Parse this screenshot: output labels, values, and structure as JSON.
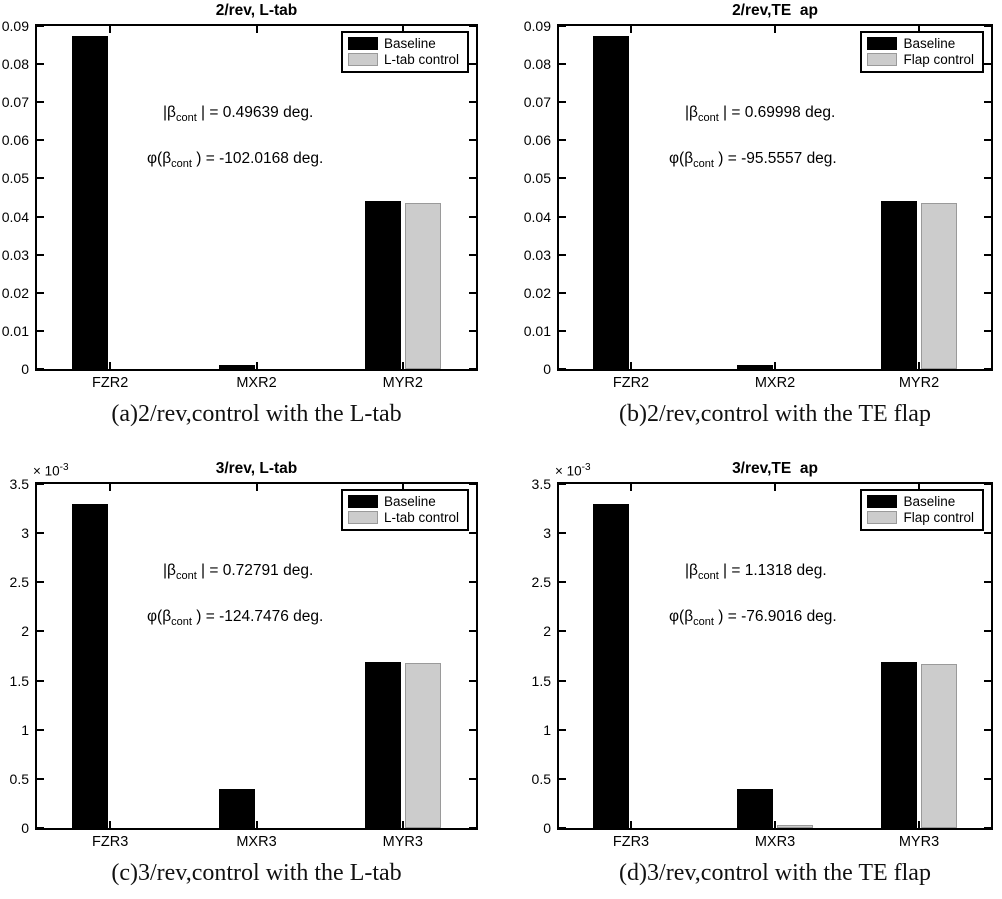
{
  "page": {
    "background": "#ffffff"
  },
  "colors": {
    "baseline": "#000000",
    "control_fill": "#cccccc",
    "control_edge": "#9a9a9a",
    "axis": "#000000"
  },
  "chart_data": [
    {
      "type": "bar",
      "title": "2/rev, L-tab",
      "caption": "(a)2/rev,control with the L-tab",
      "categories": [
        "FZR2",
        "MXR2",
        "MYR2"
      ],
      "series": [
        {
          "name": "Baseline",
          "color": "#000000",
          "values": [
            0.0875,
            0.001,
            0.044
          ]
        },
        {
          "name": "L-tab control",
          "color": "#cccccc",
          "values": [
            0,
            0,
            0.0435
          ]
        }
      ],
      "ylim": [
        0,
        0.09
      ],
      "yticks": [
        0,
        0.01,
        0.02,
        0.03,
        0.04,
        0.05,
        0.06,
        0.07,
        0.08,
        0.09
      ],
      "ytick_labels": [
        "0",
        "0.01",
        "0.02",
        "0.03",
        "0.04",
        "0.05",
        "0.06",
        "0.07",
        "0.08",
        "0.09"
      ],
      "y_exponent": null,
      "legend_position": "top-right",
      "grid": "off",
      "annotations": [
        {
          "pre": "|β",
          "sub": "cont",
          "post": " | = 0.49639 deg."
        },
        {
          "pre": "φ(β",
          "sub": "cont",
          "post": " ) = -102.0168 deg."
        }
      ]
    },
    {
      "type": "bar",
      "title": "2/rev,TE  ap",
      "caption": "(b)2/rev,control with the TE flap",
      "categories": [
        "FZR2",
        "MXR2",
        "MYR2"
      ],
      "series": [
        {
          "name": "Baseline",
          "color": "#000000",
          "values": [
            0.0875,
            0.001,
            0.044
          ]
        },
        {
          "name": "Flap control",
          "color": "#cccccc",
          "values": [
            0,
            0,
            0.0435
          ]
        }
      ],
      "ylim": [
        0,
        0.09
      ],
      "yticks": [
        0,
        0.01,
        0.02,
        0.03,
        0.04,
        0.05,
        0.06,
        0.07,
        0.08,
        0.09
      ],
      "ytick_labels": [
        "0",
        "0.01",
        "0.02",
        "0.03",
        "0.04",
        "0.05",
        "0.06",
        "0.07",
        "0.08",
        "0.09"
      ],
      "y_exponent": null,
      "legend_position": "top-right",
      "grid": "off",
      "annotations": [
        {
          "pre": "|β",
          "sub": "cont",
          "post": " | = 0.69998 deg."
        },
        {
          "pre": "φ(β",
          "sub": "cont",
          "post": " ) = -95.5557 deg."
        }
      ]
    },
    {
      "type": "bar",
      "title": "3/rev, L-tab",
      "caption": "(c)3/rev,control with the L-tab",
      "categories": [
        "FZR3",
        "MXR3",
        "MYR3"
      ],
      "series": [
        {
          "name": "Baseline",
          "color": "#000000",
          "values": [
            0.0033,
            0.0004,
            0.00169
          ]
        },
        {
          "name": "L-tab control",
          "color": "#cccccc",
          "values": [
            0,
            0,
            0.00168
          ]
        }
      ],
      "ylim": [
        0,
        0.0035
      ],
      "yticks": [
        0,
        0.0005,
        0.001,
        0.0015,
        0.002,
        0.0025,
        0.003,
        0.0035
      ],
      "ytick_labels": [
        "0",
        "0.5",
        "1",
        "1.5",
        "2",
        "2.5",
        "3",
        "3.5"
      ],
      "y_exponent": {
        "base": "× 10",
        "exp": "-3"
      },
      "legend_position": "top-right",
      "grid": "off",
      "annotations": [
        {
          "pre": "|β",
          "sub": "cont",
          "post": " | = 0.72791 deg."
        },
        {
          "pre": "φ(β",
          "sub": "cont",
          "post": " ) = -124.7476 deg."
        }
      ]
    },
    {
      "type": "bar",
      "title": "3/rev,TE  ap",
      "caption": "(d)3/rev,control with the TE flap",
      "categories": [
        "FZR3",
        "MXR3",
        "MYR3"
      ],
      "series": [
        {
          "name": "Baseline",
          "color": "#000000",
          "values": [
            0.0033,
            0.0004,
            0.00169
          ]
        },
        {
          "name": "Flap control",
          "color": "#cccccc",
          "values": [
            0,
            3.5e-05,
            0.00167
          ]
        }
      ],
      "ylim": [
        0,
        0.0035
      ],
      "yticks": [
        0,
        0.0005,
        0.001,
        0.0015,
        0.002,
        0.0025,
        0.003,
        0.0035
      ],
      "ytick_labels": [
        "0",
        "0.5",
        "1",
        "1.5",
        "2",
        "2.5",
        "3",
        "3.5"
      ],
      "y_exponent": {
        "base": "× 10",
        "exp": "-3"
      },
      "legend_position": "top-right",
      "grid": "off",
      "annotations": [
        {
          "pre": "|β",
          "sub": "cont",
          "post": " | = 1.1318 deg."
        },
        {
          "pre": "φ(β",
          "sub": "cont",
          "post": " ) = -76.9016 deg."
        }
      ]
    }
  ]
}
